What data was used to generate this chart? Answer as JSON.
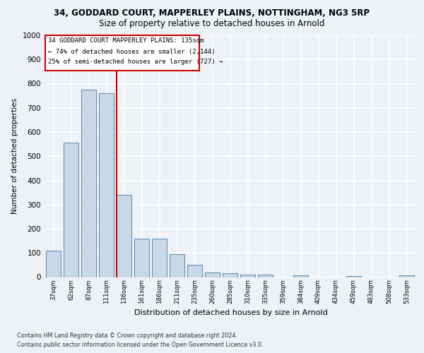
{
  "title1": "34, GODDARD COURT, MAPPERLEY PLAINS, NOTTINGHAM, NG3 5RP",
  "title2": "Size of property relative to detached houses in Arnold",
  "xlabel": "Distribution of detached houses by size in Arnold",
  "ylabel": "Number of detached properties",
  "categories": [
    "37sqm",
    "62sqm",
    "87sqm",
    "111sqm",
    "136sqm",
    "161sqm",
    "186sqm",
    "211sqm",
    "235sqm",
    "260sqm",
    "285sqm",
    "310sqm",
    "335sqm",
    "359sqm",
    "384sqm",
    "409sqm",
    "434sqm",
    "459sqm",
    "483sqm",
    "508sqm",
    "533sqm"
  ],
  "values": [
    110,
    555,
    775,
    760,
    340,
    160,
    160,
    95,
    50,
    20,
    15,
    10,
    10,
    0,
    8,
    0,
    0,
    5,
    0,
    0,
    8
  ],
  "highlight_bar_index": 4,
  "bar_color": "#c8d8e8",
  "bar_edge_color": "#5588aa",
  "highlight_line_color": "#cc0000",
  "ylim": [
    0,
    1000
  ],
  "yticks": [
    0,
    100,
    200,
    300,
    400,
    500,
    600,
    700,
    800,
    900,
    1000
  ],
  "annotation_line1": "34 GODDARD COURT MAPPERLEY PLAINS: 135sqm",
  "annotation_line2": "← 74% of detached houses are smaller (2,144)",
  "annotation_line3": "25% of semi-detached houses are larger (727) →",
  "footer1": "Contains HM Land Registry data © Crown copyright and database right 2024.",
  "footer2": "Contains public sector information licensed under the Open Government Licence v3.0.",
  "bg_color": "#eef2f7",
  "grid_color": "#ffffff"
}
